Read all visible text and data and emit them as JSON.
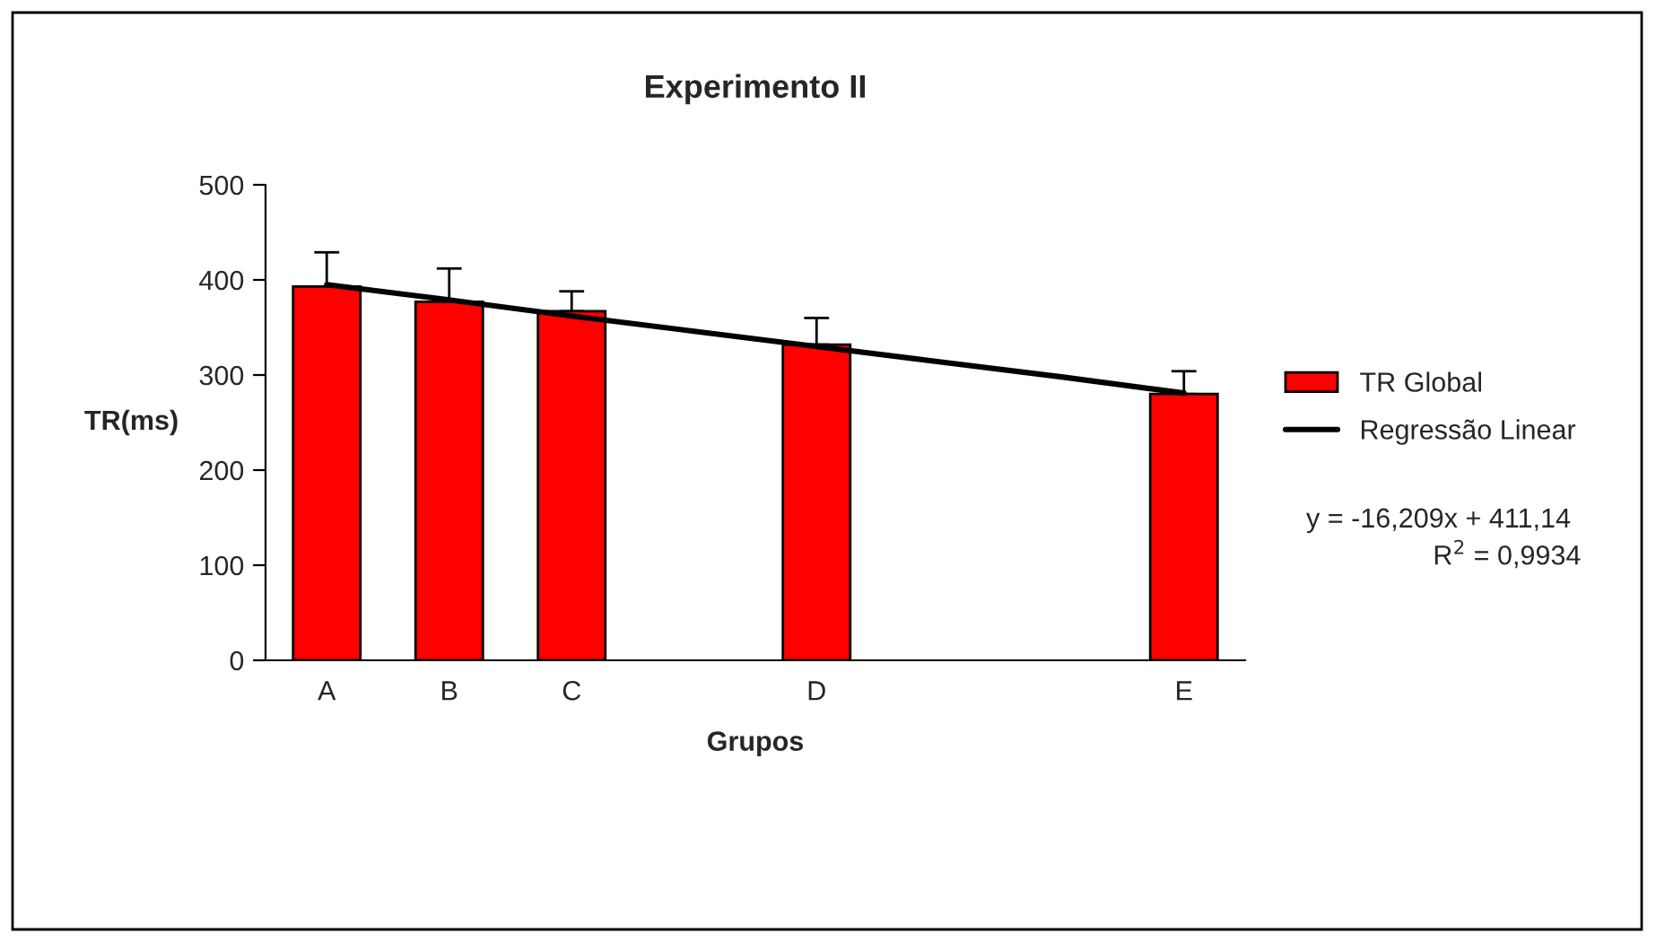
{
  "chart_data": {
    "type": "bar",
    "title": "Experimento II",
    "xlabel": "Grupos",
    "ylabel": "TR(ms)",
    "categories": [
      "A",
      "B",
      "C",
      null,
      "D",
      null,
      null,
      "E"
    ],
    "series": [
      {
        "name": "TR Global",
        "color": "#ff0000",
        "values": [
          393,
          377,
          367,
          null,
          332,
          null,
          null,
          280
        ],
        "errors": [
          [
            393,
            429
          ],
          [
            377,
            412
          ],
          [
            367,
            388
          ],
          null,
          [
            332,
            360
          ],
          null,
          null,
          [
            280,
            304
          ]
        ]
      },
      {
        "name": "Regressão Linear",
        "type": "line",
        "color": "#000000",
        "values": [
          395,
          379,
          362,
          346,
          330,
          314,
          298,
          281
        ]
      }
    ],
    "ylim": [
      0,
      500
    ],
    "yticks": [
      0,
      100,
      200,
      300,
      400,
      500
    ],
    "grid": false,
    "legend": "right",
    "annotations": [
      "y = -16,209x + 411,14",
      "R$^{2}$ = 0,9934"
    ]
  }
}
